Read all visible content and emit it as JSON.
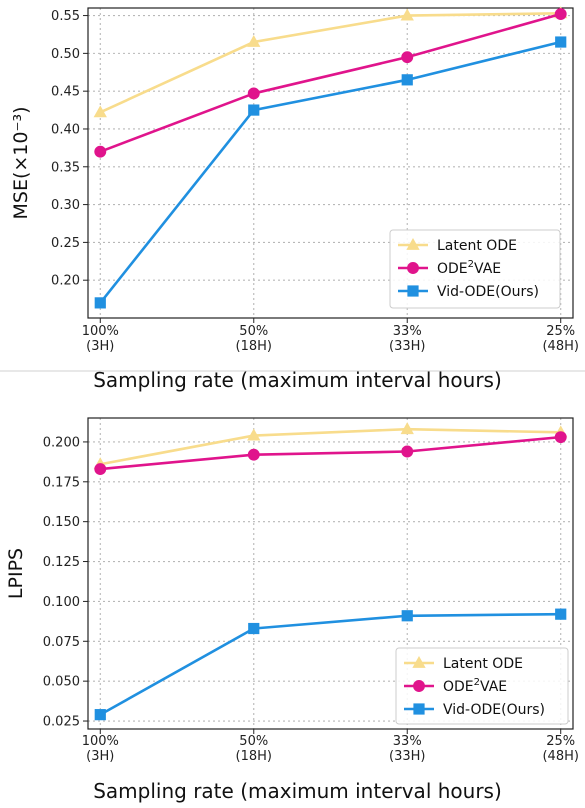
{
  "chart_data": [
    {
      "type": "line",
      "x_tick_labels": [
        [
          "100%",
          "(3H)"
        ],
        [
          "50%",
          "(18H)"
        ],
        [
          "33%",
          "(33H)"
        ],
        [
          "25%",
          "(48H)"
        ]
      ],
      "x": [
        3,
        18,
        33,
        48
      ],
      "xlabel": "Sampling rate (maximum interval hours)",
      "ylabel": "MSE(×10⁻³)",
      "ylim": [
        0.15,
        0.56
      ],
      "yticks": [
        "0.20",
        "0.25",
        "0.30",
        "0.35",
        "0.40",
        "0.45",
        "0.50",
        "0.55"
      ],
      "grid": true,
      "legend_position": "lower-right",
      "series": [
        {
          "name": "Latent ODE",
          "name_sup": "",
          "color": "#f8dc8c",
          "marker": "triangle",
          "values": [
            0.422,
            0.515,
            0.55,
            0.553
          ]
        },
        {
          "name": "ODE",
          "name_sup": "2",
          "name_tail": "VAE",
          "color": "#e0148c",
          "marker": "circle",
          "values": [
            0.37,
            0.447,
            0.495,
            0.552
          ]
        },
        {
          "name": "Vid-ODE(Ours)",
          "name_sup": "",
          "color": "#2090e0",
          "marker": "square",
          "values": [
            0.17,
            0.425,
            0.465,
            0.515
          ]
        }
      ]
    },
    {
      "type": "line",
      "x_tick_labels": [
        [
          "100%",
          "(3H)"
        ],
        [
          "50%",
          "(18H)"
        ],
        [
          "33%",
          "(33H)"
        ],
        [
          "25%",
          "(48H)"
        ]
      ],
      "x": [
        3,
        18,
        33,
        48
      ],
      "xlabel": "Sampling rate (maximum interval hours)",
      "ylabel": "LPIPS",
      "ylim": [
        0.02,
        0.215
      ],
      "yticks": [
        "0.025",
        "0.050",
        "0.075",
        "0.100",
        "0.125",
        "0.150",
        "0.175",
        "0.200"
      ],
      "grid": true,
      "legend_position": "lower-right",
      "series": [
        {
          "name": "Latent ODE",
          "name_sup": "",
          "color": "#f8dc8c",
          "marker": "triangle",
          "values": [
            0.186,
            0.204,
            0.208,
            0.206
          ]
        },
        {
          "name": "ODE",
          "name_sup": "2",
          "name_tail": "VAE",
          "color": "#e0148c",
          "marker": "circle",
          "values": [
            0.183,
            0.192,
            0.194,
            0.203
          ]
        },
        {
          "name": "Vid-ODE(Ours)",
          "name_sup": "",
          "color": "#2090e0",
          "marker": "square",
          "values": [
            0.029,
            0.083,
            0.091,
            0.092
          ]
        }
      ]
    }
  ]
}
